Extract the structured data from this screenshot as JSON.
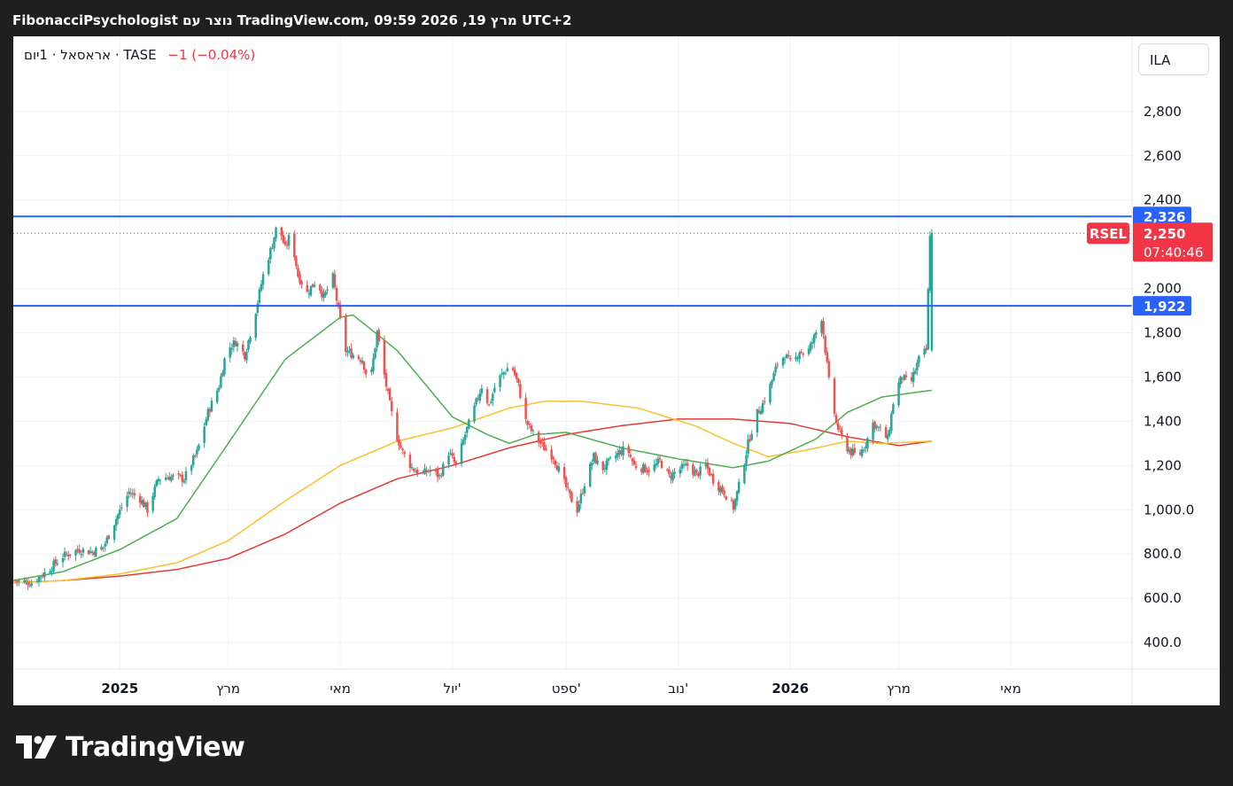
{
  "header": {
    "title": "FibonacciPsychologist נוצר עם TradingView.com, 09:59 2026 ,19 מרץ UTC+2"
  },
  "legend": {
    "symbol": "אראסאל · 1יום · TASE",
    "change": "−1 (−0.04%)"
  },
  "currency_button": "ILA",
  "brand": {
    "name": "TradingView"
  },
  "colors": {
    "up": "#26a69a",
    "down": "#ef5350",
    "ma_short": "#4caf50",
    "ma_mid": "#fbc02d",
    "ma_long": "#e53935",
    "hline": "#2962ff",
    "price_tag": "#f23645"
  },
  "chart_data": {
    "type": "candlestick",
    "symbol": "RSEL",
    "exchange": "TASE",
    "interval": "1D",
    "currency": "ILA",
    "last_price": "2,250",
    "countdown": "07:40:46",
    "price_change": "−1 (−0.04%)",
    "y_ticks": [
      2800,
      2600,
      2400,
      2000,
      1800,
      1600,
      1400,
      1200,
      1000,
      800,
      600,
      400
    ],
    "y_tick_labels": [
      "2,800",
      "2,600",
      "2,400",
      "2,000",
      "1,800",
      "1,600",
      "1,400",
      "1,200",
      "1,000.0",
      "800.0",
      "600.0",
      "400.0"
    ],
    "ylim": [
      280,
      3140
    ],
    "x_ticks": [
      {
        "label": "2025",
        "date": "2025-01-01",
        "bold": true
      },
      {
        "label": "מרץ",
        "date": "2025-03-01",
        "bold": false
      },
      {
        "label": "מאי",
        "date": "2025-05-01",
        "bold": false
      },
      {
        "label": "יול'",
        "date": "2025-07-01",
        "bold": false
      },
      {
        "label": "ספט'",
        "date": "2025-09-01",
        "bold": false
      },
      {
        "label": "נוב'",
        "date": "2025-11-01",
        "bold": false
      },
      {
        "label": "2026",
        "date": "2026-01-01",
        "bold": true
      },
      {
        "label": "מרץ",
        "date": "2026-03-01",
        "bold": false
      },
      {
        "label": "מאי",
        "date": "2026-05-01",
        "bold": false
      }
    ],
    "xlim": [
      "2024-11-04",
      "2026-07-06"
    ],
    "horizontal_lines": [
      {
        "value": 2326,
        "label": "2,326"
      },
      {
        "value": 1922,
        "label": "1,922"
      }
    ],
    "price_anchors": [
      [
        "2024-11-04",
        680
      ],
      [
        "2024-11-14",
        670
      ],
      [
        "2024-11-22",
        720
      ],
      [
        "2024-12-01",
        790
      ],
      [
        "2024-12-10",
        820
      ],
      [
        "2024-12-17",
        810
      ],
      [
        "2024-12-23",
        830
      ],
      [
        "2024-12-30",
        960
      ],
      [
        "2025-01-06",
        1080
      ],
      [
        "2025-01-12",
        1050
      ],
      [
        "2025-01-16",
        1000
      ],
      [
        "2025-01-22",
        1140
      ],
      [
        "2025-01-28",
        1150
      ],
      [
        "2025-02-05",
        1140
      ],
      [
        "2025-02-12",
        1260
      ],
      [
        "2025-02-18",
        1440
      ],
      [
        "2025-02-24",
        1560
      ],
      [
        "2025-02-28",
        1720
      ],
      [
        "2025-03-05",
        1760
      ],
      [
        "2025-03-10",
        1700
      ],
      [
        "2025-03-15",
        1860
      ],
      [
        "2025-03-20",
        2060
      ],
      [
        "2025-03-25",
        2200
      ],
      [
        "2025-03-28",
        2300
      ],
      [
        "2025-04-01",
        2180
      ],
      [
        "2025-04-04",
        2250
      ],
      [
        "2025-04-08",
        2060
      ],
      [
        "2025-04-13",
        1980
      ],
      [
        "2025-04-18",
        2040
      ],
      [
        "2025-04-22",
        1960
      ],
      [
        "2025-04-27",
        2050
      ],
      [
        "2025-04-30",
        1900
      ],
      [
        "2025-05-04",
        1720
      ],
      [
        "2025-05-08",
        1700
      ],
      [
        "2025-05-13",
        1680
      ],
      [
        "2025-05-17",
        1560
      ],
      [
        "2025-05-21",
        1800
      ],
      [
        "2025-05-26",
        1560
      ],
      [
        "2025-05-31",
        1350
      ],
      [
        "2025-06-04",
        1260
      ],
      [
        "2025-06-09",
        1190
      ],
      [
        "2025-06-14",
        1160
      ],
      [
        "2025-06-19",
        1180
      ],
      [
        "2025-06-24",
        1150
      ],
      [
        "2025-06-29",
        1260
      ],
      [
        "2025-07-03",
        1200
      ],
      [
        "2025-07-08",
        1340
      ],
      [
        "2025-07-13",
        1460
      ],
      [
        "2025-07-17",
        1560
      ],
      [
        "2025-07-21",
        1470
      ],
      [
        "2025-07-25",
        1580
      ],
      [
        "2025-07-29",
        1620
      ],
      [
        "2025-08-02",
        1660
      ],
      [
        "2025-08-06",
        1560
      ],
      [
        "2025-08-10",
        1400
      ],
      [
        "2025-08-15",
        1330
      ],
      [
        "2025-08-20",
        1280
      ],
      [
        "2025-08-25",
        1240
      ],
      [
        "2025-08-29",
        1160
      ],
      [
        "2025-09-03",
        1060
      ],
      [
        "2025-09-07",
        1000
      ],
      [
        "2025-09-11",
        1120
      ],
      [
        "2025-09-16",
        1240
      ],
      [
        "2025-09-20",
        1180
      ],
      [
        "2025-09-25",
        1220
      ],
      [
        "2025-09-30",
        1260
      ],
      [
        "2025-10-04",
        1280
      ],
      [
        "2025-10-08",
        1200
      ],
      [
        "2025-10-12",
        1190
      ],
      [
        "2025-10-17",
        1180
      ],
      [
        "2025-10-22",
        1220
      ],
      [
        "2025-10-27",
        1150
      ],
      [
        "2025-11-01",
        1180
      ],
      [
        "2025-11-06",
        1200
      ],
      [
        "2025-11-11",
        1160
      ],
      [
        "2025-11-16",
        1200
      ],
      [
        "2025-11-21",
        1120
      ],
      [
        "2025-11-26",
        1080
      ],
      [
        "2025-12-01",
        1010
      ],
      [
        "2025-12-05",
        1140
      ],
      [
        "2025-12-09",
        1300
      ],
      [
        "2025-12-13",
        1420
      ],
      [
        "2025-12-17",
        1480
      ],
      [
        "2025-12-21",
        1560
      ],
      [
        "2025-12-25",
        1660
      ],
      [
        "2025-12-29",
        1700
      ],
      [
        "2026-01-02",
        1650
      ],
      [
        "2026-01-06",
        1720
      ],
      [
        "2026-01-10",
        1700
      ],
      [
        "2026-01-14",
        1780
      ],
      [
        "2026-01-18",
        1870
      ],
      [
        "2026-01-22",
        1580
      ],
      [
        "2026-01-26",
        1390
      ],
      [
        "2026-01-30",
        1300
      ],
      [
        "2026-02-03",
        1260
      ],
      [
        "2026-02-07",
        1240
      ],
      [
        "2026-02-11",
        1300
      ],
      [
        "2026-02-15",
        1390
      ],
      [
        "2026-02-19",
        1360
      ],
      [
        "2026-02-23",
        1320
      ],
      [
        "2026-02-27",
        1540
      ],
      [
        "2026-03-03",
        1600
      ],
      [
        "2026-03-07",
        1560
      ],
      [
        "2026-03-12",
        1680
      ],
      [
        "2026-03-16",
        1720
      ],
      [
        "2026-03-18",
        2251
      ],
      [
        "2026-03-19",
        2250
      ]
    ],
    "ma_short_anchors": [
      [
        "2024-11-04",
        680
      ],
      [
        "2024-12-01",
        720
      ],
      [
        "2025-01-01",
        820
      ],
      [
        "2025-02-01",
        960
      ],
      [
        "2025-03-01",
        1300
      ],
      [
        "2025-04-01",
        1680
      ],
      [
        "2025-05-01",
        1870
      ],
      [
        "2025-05-08",
        1880
      ],
      [
        "2025-06-01",
        1720
      ],
      [
        "2025-07-01",
        1420
      ],
      [
        "2025-07-20",
        1340
      ],
      [
        "2025-08-01",
        1300
      ],
      [
        "2025-08-15",
        1340
      ],
      [
        "2025-09-01",
        1350
      ],
      [
        "2025-10-01",
        1280
      ],
      [
        "2025-11-01",
        1230
      ],
      [
        "2025-12-01",
        1190
      ],
      [
        "2025-12-20",
        1220
      ],
      [
        "2026-01-15",
        1320
      ],
      [
        "2026-02-01",
        1440
      ],
      [
        "2026-02-20",
        1510
      ],
      [
        "2026-03-19",
        1540
      ]
    ],
    "ma_mid_anchors": [
      [
        "2024-11-04",
        670
      ],
      [
        "2024-12-01",
        680
      ],
      [
        "2025-01-01",
        710
      ],
      [
        "2025-02-01",
        760
      ],
      [
        "2025-03-01",
        860
      ],
      [
        "2025-04-01",
        1040
      ],
      [
        "2025-05-01",
        1200
      ],
      [
        "2025-06-01",
        1310
      ],
      [
        "2025-07-01",
        1370
      ],
      [
        "2025-08-01",
        1460
      ],
      [
        "2025-08-20",
        1490
      ],
      [
        "2025-09-10",
        1490
      ],
      [
        "2025-10-10",
        1460
      ],
      [
        "2025-11-10",
        1380
      ],
      [
        "2025-12-01",
        1300
      ],
      [
        "2025-12-20",
        1240
      ],
      [
        "2026-01-10",
        1270
      ],
      [
        "2026-02-01",
        1310
      ],
      [
        "2026-02-20",
        1300
      ],
      [
        "2026-03-19",
        1310
      ]
    ],
    "ma_long_anchors": [
      [
        "2024-11-04",
        670
      ],
      [
        "2024-12-01",
        680
      ],
      [
        "2025-01-01",
        700
      ],
      [
        "2025-02-01",
        730
      ],
      [
        "2025-03-01",
        780
      ],
      [
        "2025-04-01",
        890
      ],
      [
        "2025-05-01",
        1030
      ],
      [
        "2025-06-01",
        1140
      ],
      [
        "2025-07-01",
        1200
      ],
      [
        "2025-08-01",
        1280
      ],
      [
        "2025-09-01",
        1340
      ],
      [
        "2025-10-01",
        1380
      ],
      [
        "2025-11-01",
        1410
      ],
      [
        "2025-12-01",
        1410
      ],
      [
        "2026-01-01",
        1390
      ],
      [
        "2026-02-01",
        1330
      ],
      [
        "2026-03-01",
        1290
      ],
      [
        "2026-03-19",
        1310
      ]
    ]
  }
}
